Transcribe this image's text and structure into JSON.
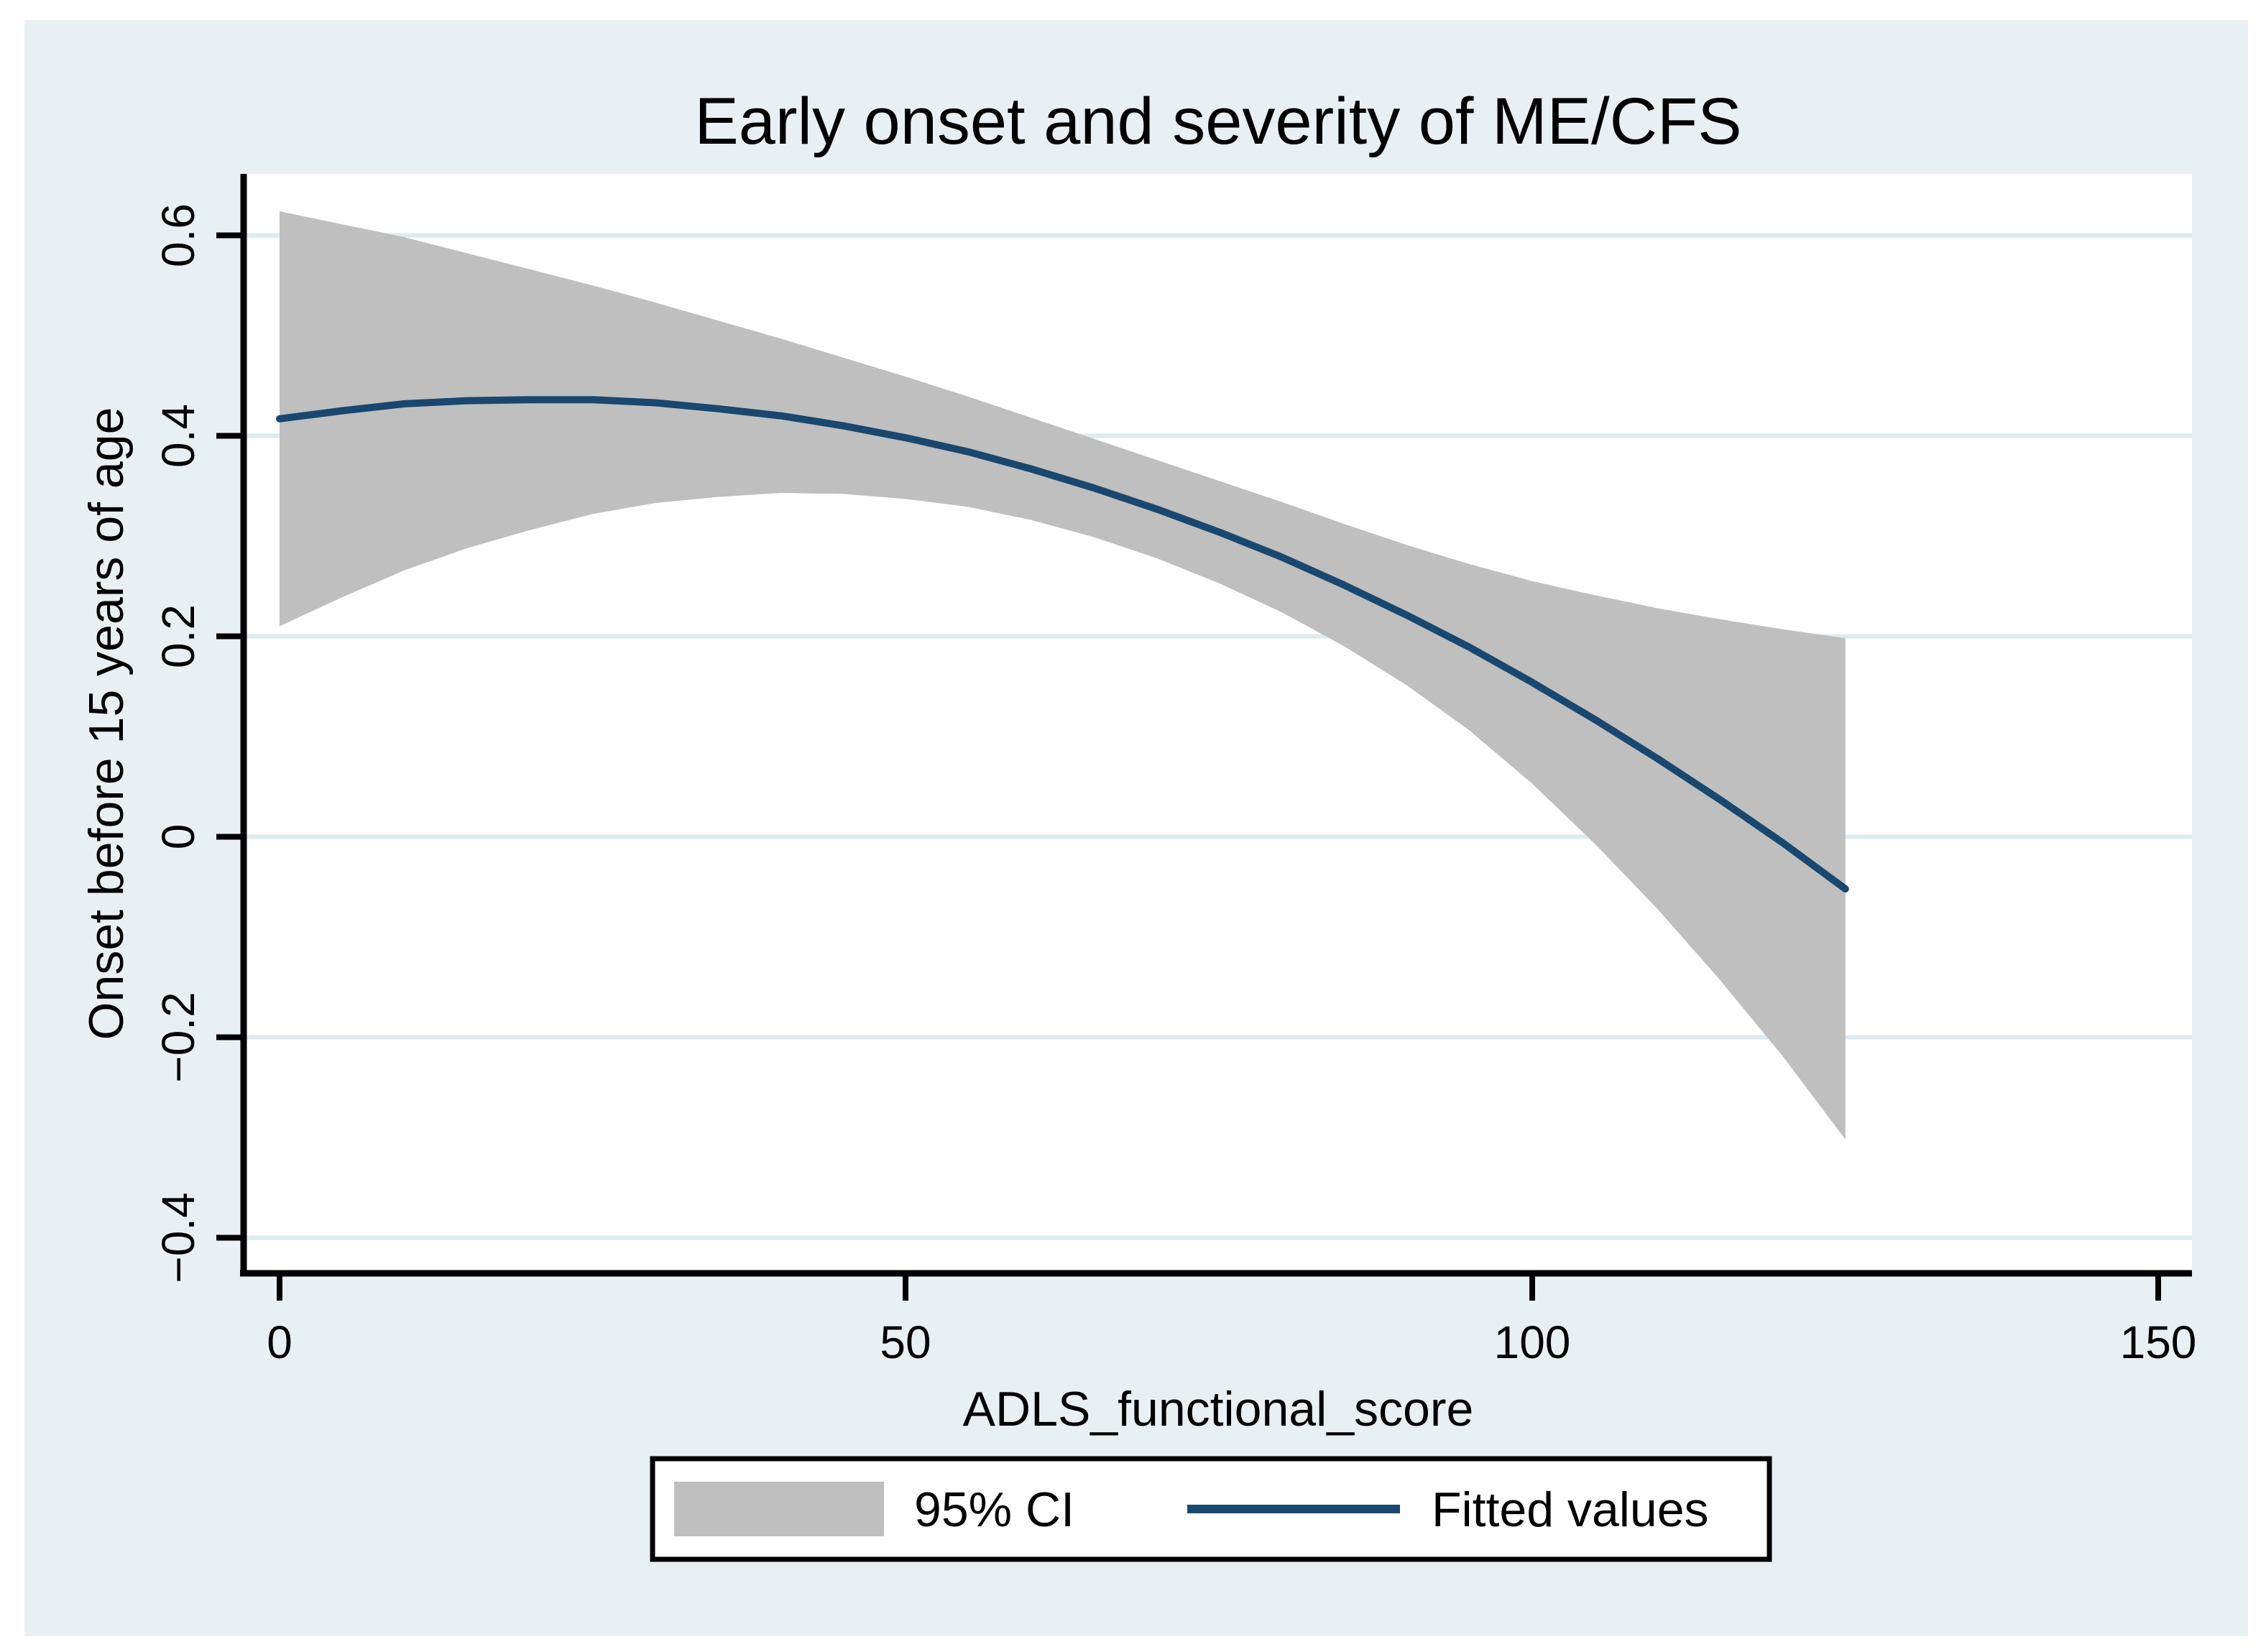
{
  "title": {
    "text": "Early onset and severity of ME/CFS"
  },
  "chart_data": {
    "type": "line",
    "subtype": "quadratic-fit-with-confidence-band",
    "title": "Early onset and severity of ME/CFS",
    "xlabel": "ADLS_functional_score",
    "ylabel": "Onset before 15 years of age",
    "xlim": [
      -3,
      153
    ],
    "ylim": [
      -0.44,
      0.66
    ],
    "grid": "horizontal",
    "legend_position": "bottom-center",
    "xticks": [
      {
        "label": "0",
        "value": 0
      },
      {
        "label": "50",
        "value": 50
      },
      {
        "label": "100",
        "value": 100
      },
      {
        "label": "150",
        "value": 150
      }
    ],
    "yticks": [
      {
        "label": "0.6",
        "value": 0.6
      },
      {
        "label": "0.4",
        "value": 0.4
      },
      {
        "label": "0.2",
        "value": 0.2
      },
      {
        "label": "0",
        "value": 0.0
      },
      {
        "label": "−0.2",
        "value": -0.2
      },
      {
        "label": "−0.4",
        "value": -0.4
      }
    ],
    "x": [
      0,
      5,
      10,
      15,
      20,
      25,
      30,
      35,
      40,
      45,
      50,
      55,
      60,
      65,
      70,
      75,
      80,
      85,
      90,
      95,
      100,
      105,
      110,
      115,
      120,
      125
    ],
    "fitted": [
      0.417,
      0.425,
      0.432,
      0.435,
      0.436,
      0.436,
      0.433,
      0.427,
      0.42,
      0.41,
      0.398,
      0.384,
      0.367,
      0.348,
      0.327,
      0.304,
      0.279,
      0.251,
      0.221,
      0.189,
      0.154,
      0.117,
      0.078,
      0.037,
      -0.006,
      -0.052
    ],
    "ci_upper": [
      0.624,
      0.611,
      0.598,
      0.582,
      0.566,
      0.55,
      0.533,
      0.515,
      0.497,
      0.478,
      0.459,
      0.439,
      0.418,
      0.397,
      0.376,
      0.355,
      0.334,
      0.312,
      0.291,
      0.272,
      0.255,
      0.241,
      0.228,
      0.217,
      0.207,
      0.198
    ],
    "ci_lower": [
      0.21,
      0.239,
      0.266,
      0.288,
      0.306,
      0.322,
      0.333,
      0.339,
      0.343,
      0.342,
      0.337,
      0.329,
      0.316,
      0.299,
      0.278,
      0.253,
      0.224,
      0.19,
      0.151,
      0.106,
      0.053,
      -0.007,
      -0.072,
      -0.143,
      -0.219,
      -0.302
    ],
    "legend": [
      {
        "label": "95% CI",
        "swatch": "area"
      },
      {
        "label": "Fitted values",
        "swatch": "line"
      }
    ],
    "colors": {
      "canvas": "#e9f0f3",
      "plot_background": "#ffffff",
      "gridline": "#dfeaf0",
      "ci_band": "#bfbfbf",
      "fitted_line": "#1a476f",
      "title": "#253a64",
      "axis": "#000000"
    }
  }
}
